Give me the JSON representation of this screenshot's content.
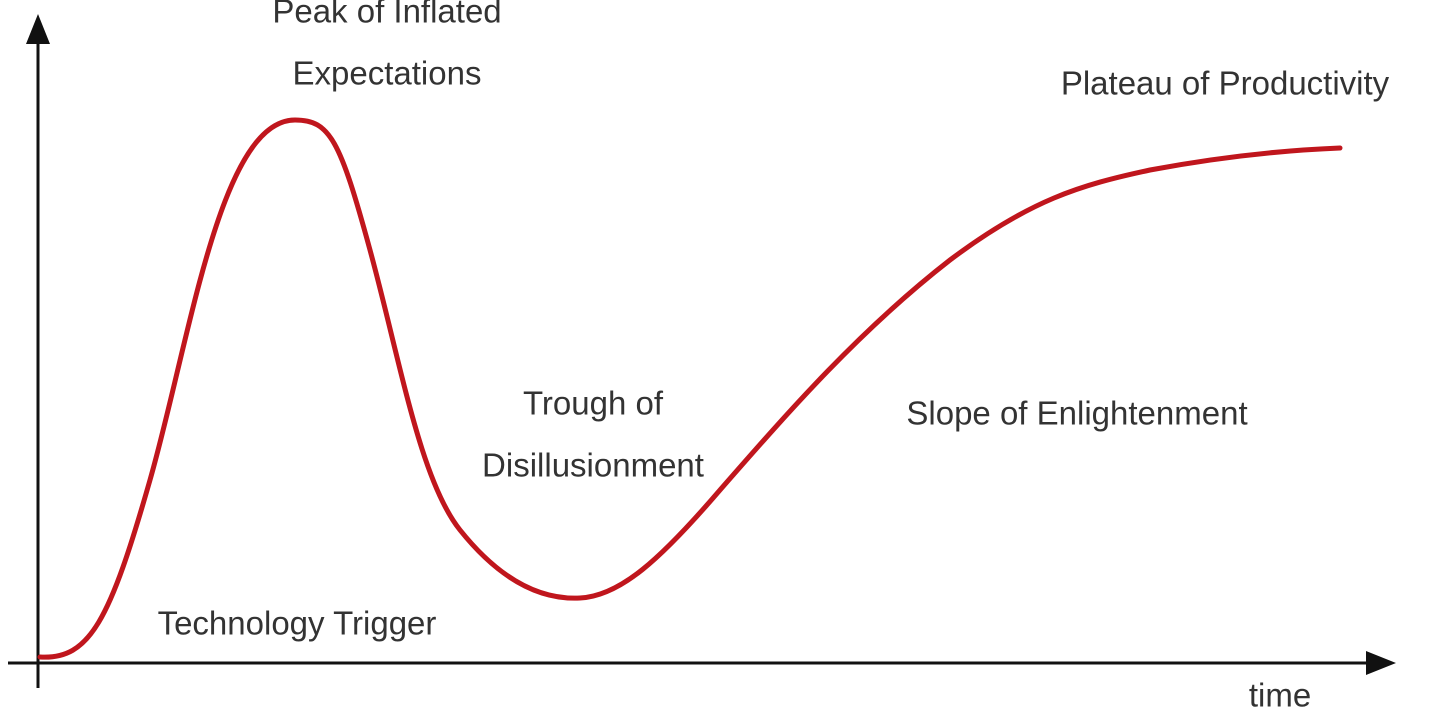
{
  "axes": {
    "x_label": "time"
  },
  "phases": [
    {
      "lines": [
        "Technology Trigger"
      ]
    },
    {
      "lines": [
        "Peak of Inflated",
        "Expectations"
      ]
    },
    {
      "lines": [
        "Trough of",
        "Disillusionment"
      ]
    },
    {
      "lines": [
        "Slope of Enlightenment"
      ]
    },
    {
      "lines": [
        "Plateau of Productivity"
      ]
    }
  ]
}
